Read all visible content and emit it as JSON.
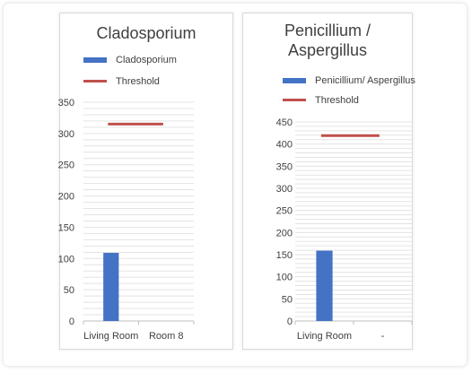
{
  "chart_data": [
    {
      "type": "bar",
      "title": [
        "Cladosporium"
      ],
      "categories": [
        "Living Room",
        "Room 8"
      ],
      "series": [
        {
          "name": "Cladosporium",
          "values": [
            109,
            null
          ],
          "color": "#4472c4"
        }
      ],
      "threshold": {
        "name": "Threshold",
        "value": 315,
        "color": "#c0504d"
      },
      "ylim": [
        0,
        350
      ],
      "yticks": [
        0,
        50,
        100,
        150,
        200,
        250,
        300,
        350
      ],
      "minor_step": 10,
      "grid": true,
      "legend": "top",
      "xlabel": "",
      "ylabel": ""
    },
    {
      "type": "bar",
      "title": [
        "Penicillium /",
        "Aspergillus"
      ],
      "categories": [
        "Living Room",
        "-"
      ],
      "series": [
        {
          "name": "Penicillium/ Aspergillus",
          "values": [
            159,
            null
          ],
          "color": "#4472c4"
        }
      ],
      "threshold": {
        "name": "Threshold",
        "value": 419,
        "color": "#c0504d"
      },
      "ylim": [
        0,
        450
      ],
      "yticks": [
        0,
        50,
        100,
        150,
        200,
        250,
        300,
        350,
        400,
        450
      ],
      "minor_step": 10,
      "grid": true,
      "legend": "top",
      "xlabel": "",
      "ylabel": ""
    }
  ]
}
